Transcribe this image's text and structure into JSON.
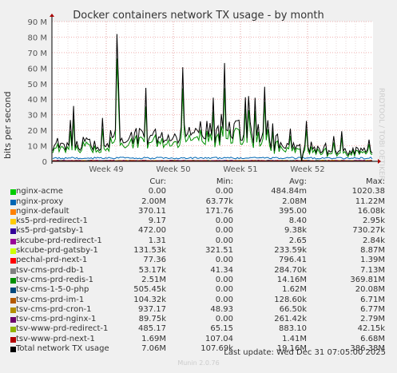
{
  "chart_data": {
    "type": "line",
    "title": "Docker containers network TX usage - by month",
    "ylabel": "bits per second",
    "side_credit": "RRDTOOL / TOBI OETIKER",
    "ylim": [
      0,
      90000000
    ],
    "y_ticks": [
      "0",
      "10 M",
      "20 M",
      "30 M",
      "40 M",
      "50 M",
      "60 M",
      "70 M",
      "80 M",
      "90 M"
    ],
    "x_ticks": [
      "Week 49",
      "Week 50",
      "Week 51",
      "Week 52"
    ],
    "grid": true,
    "columns": {
      "cur": "Cur:",
      "min": "Min:",
      "avg": "Avg:",
      "max": "Max:"
    },
    "legend": [
      {
        "name": "nginx-acme",
        "color": "#00cc00",
        "cur": "0.00",
        "min": "0.00",
        "avg": "484.84m",
        "max": "1020.38"
      },
      {
        "name": "nginx-proxy",
        "color": "#0066b3",
        "cur": "2.00M",
        "min": "63.77k",
        "avg": "2.08M",
        "max": "11.22M"
      },
      {
        "name": "nginx-default",
        "color": "#ff8000",
        "cur": "370.11",
        "min": "171.76",
        "avg": "395.00",
        "max": "16.08k"
      },
      {
        "name": "ks5-prd-redirect-1",
        "color": "#ffcc00",
        "cur": "9.17",
        "min": "0.00",
        "avg": "8.40",
        "max": "2.95k"
      },
      {
        "name": "ks5-prd-gatsby-1",
        "color": "#330099",
        "cur": "472.00",
        "min": "0.00",
        "avg": "9.38k",
        "max": "730.27k"
      },
      {
        "name": "skcube-prd-redirect-1",
        "color": "#990099",
        "cur": "1.31",
        "min": "0.00",
        "avg": "2.65",
        "max": "2.84k"
      },
      {
        "name": "skcube-prd-gatsby-1",
        "color": "#ccff00",
        "cur": "131.53k",
        "min": "321.51",
        "avg": "233.59k",
        "max": "8.87M"
      },
      {
        "name": "pechal-prd-next-1",
        "color": "#ff0000",
        "cur": "77.36",
        "min": "0.00",
        "avg": "796.41",
        "max": "1.39M"
      },
      {
        "name": "tsv-cms-prd-db-1",
        "color": "#808080",
        "cur": "53.17k",
        "min": "41.34",
        "avg": "284.70k",
        "max": "7.13M"
      },
      {
        "name": "tsv-cms-prd-redis-1",
        "color": "#008f00",
        "cur": "2.51M",
        "min": "0.00",
        "avg": "14.16M",
        "max": "369.81M"
      },
      {
        "name": "tsv-cms-1-5-0-php",
        "color": "#00487d",
        "cur": "505.45k",
        "min": "0.00",
        "avg": "1.62M",
        "max": "20.08M"
      },
      {
        "name": "tsv-cms-prd-im-1",
        "color": "#b35a00",
        "cur": "104.32k",
        "min": "0.00",
        "avg": "128.60k",
        "max": "6.71M"
      },
      {
        "name": "tsv-cms-prd-cron-1",
        "color": "#b38f00",
        "cur": "937.17",
        "min": "48.93",
        "avg": "66.50k",
        "max": "6.77M"
      },
      {
        "name": "tsv-cms-prd-nginx-1",
        "color": "#6b006b",
        "cur": "89.75k",
        "min": "0.00",
        "avg": "261.42k",
        "max": "2.79M"
      },
      {
        "name": "tsv-www-prd-redirect-1",
        "color": "#8fb300",
        "cur": "485.17",
        "min": "65.15",
        "avg": "883.10",
        "max": "42.15k"
      },
      {
        "name": "tsv-www-prd-next-1",
        "color": "#b30000",
        "cur": "1.69M",
        "min": "107.04",
        "avg": "1.41M",
        "max": "6.68M"
      },
      {
        "name": "Total network TX usage",
        "color": "#000000",
        "cur": "7.06M",
        "min": "107.69k",
        "avg": "19.16M",
        "max": "386.38M"
      }
    ]
  },
  "last_update": "Last update: Wed Dec 31 07:05:00 2025",
  "footer": "Munin 2.0.76"
}
